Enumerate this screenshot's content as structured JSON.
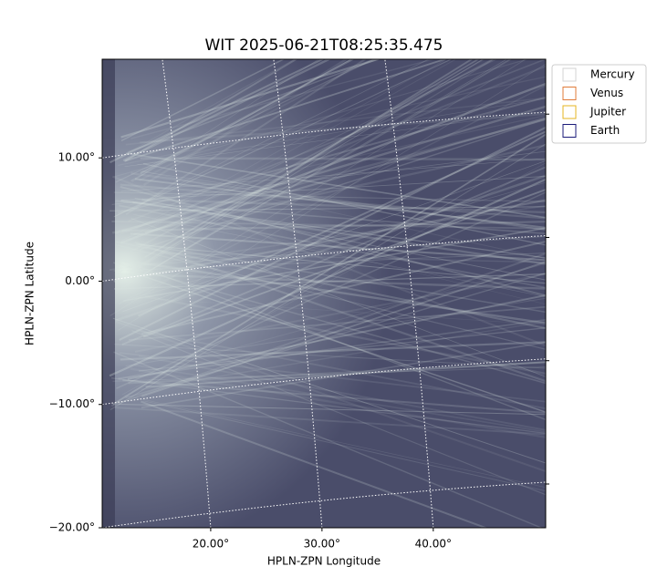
{
  "chart_data": {
    "type": "image",
    "title": "WIT 2025-06-21T08:25:35.475",
    "x_label": "HPLN-ZPN Longitude",
    "y_label": "HPLN-ZPN Latitude",
    "xlim": [
      10.25,
      50.1
    ],
    "ylim": [
      -20,
      18
    ],
    "xticks": [
      {
        "value": 20,
        "label": "20.00°"
      },
      {
        "value": 30,
        "label": "30.00°"
      },
      {
        "value": 40,
        "label": "40.00°"
      }
    ],
    "yticks": [
      {
        "value": -20,
        "label": "−20.00°"
      },
      {
        "value": -10,
        "label": "−10.00°"
      },
      {
        "value": 0,
        "label": "0.00°"
      },
      {
        "value": 10,
        "label": "10.00°"
      }
    ],
    "grid": true,
    "legend_position": "upper right outside",
    "legend": [
      {
        "name": "Mercury",
        "color": "#d3d3d3"
      },
      {
        "name": "Venus",
        "color": "#e07b39"
      },
      {
        "name": "Jupiter",
        "color": "#e6b422"
      },
      {
        "name": "Earth",
        "color": "#1b1b7a"
      }
    ]
  }
}
